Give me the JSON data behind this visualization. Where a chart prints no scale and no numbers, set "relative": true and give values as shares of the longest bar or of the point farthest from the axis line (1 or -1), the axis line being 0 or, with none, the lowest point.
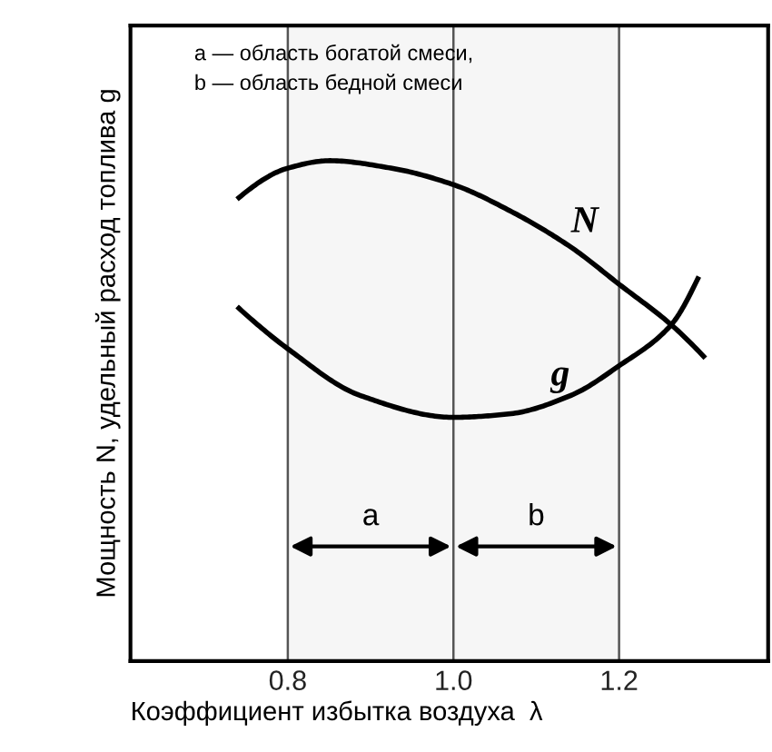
{
  "chart_data": {
    "type": "line",
    "relative": true,
    "xlabel": "Коэффициент избытка воздуха  λ",
    "ylabel": "Мощность N, удельный расход топлива g",
    "annotations": [
      "a — область богатой смеси,\nb — область бедной смеси"
    ],
    "xlim": [
      0.61,
      1.38
    ],
    "xticks": [
      0.8,
      {
        "value": 1,
        "label": "1.0"
      },
      1.2
    ],
    "grid": "x",
    "series": [
      {
        "name": "N",
        "color": "#000000",
        "x": [
          0.741,
          0.8,
          0.85,
          0.925,
          1.0,
          1.068,
          1.142,
          1.2,
          1.263,
          1.302
        ],
        "values": [
          0.926,
          0.985,
          1.0,
          0.985,
          0.952,
          0.9,
          0.827,
          0.753,
          0.672,
          0.609
        ]
      },
      {
        "name": "g",
        "color": "#000000",
        "x": [
          0.741,
          0.8,
          0.887,
          1.0,
          1.068,
          1.142,
          1.2,
          1.263,
          1.295
        ],
        "values": [
          0.705,
          0.624,
          0.531,
          0.487,
          0.494,
          0.531,
          0.59,
          0.672,
          0.764
        ]
      }
    ],
    "bands": [
      {
        "axis": "x",
        "from": 0.8,
        "to": 1.0,
        "label": "a"
      },
      {
        "axis": "x",
        "from": 1.0,
        "to": 1.2,
        "label": "b"
      }
    ]
  }
}
